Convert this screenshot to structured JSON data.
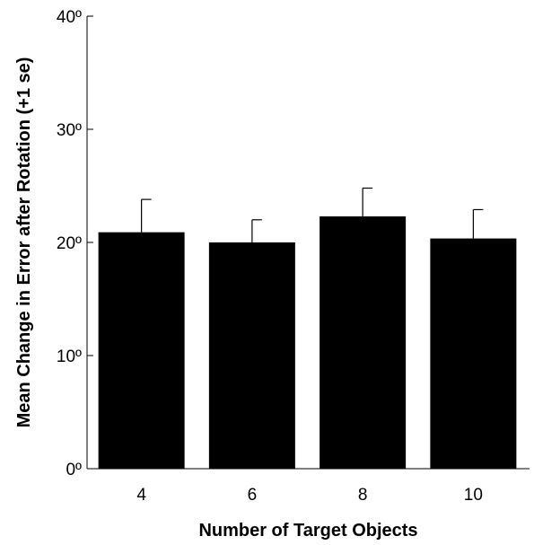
{
  "chart_data": {
    "type": "bar",
    "title": "",
    "xlabel": "Number of Target Objects",
    "ylabel": "Mean Change in Error after Rotation (+1 se)",
    "categories": [
      "4",
      "6",
      "8",
      "10"
    ],
    "values": [
      20.9,
      20.0,
      22.3,
      20.35
    ],
    "error_plus": [
      2.9,
      2.0,
      2.5,
      2.55
    ],
    "ylim": [
      0,
      40
    ],
    "yticks": [
      0,
      10,
      20,
      30,
      40
    ],
    "ytick_labels": [
      "0º",
      "10º",
      "20º",
      "30º",
      "40º"
    ],
    "bar_color": "#000000",
    "grid": false,
    "legend": "none"
  }
}
